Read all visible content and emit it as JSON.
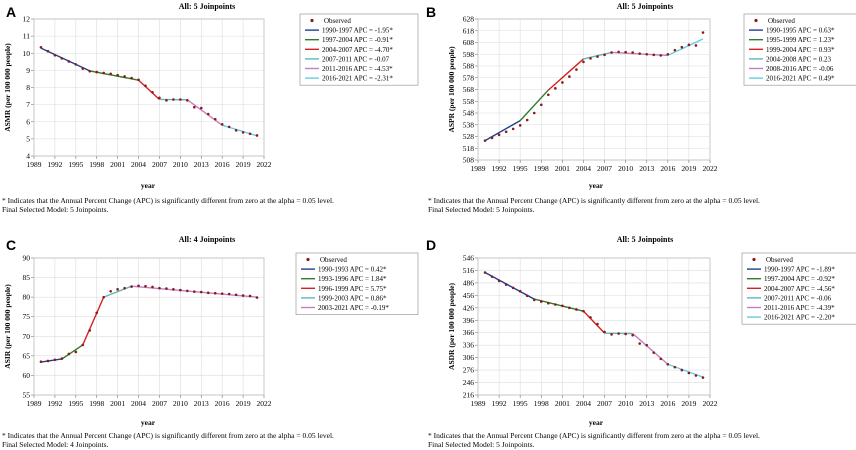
{
  "footnote": "* Indicates that the Annual Percent Change (APC) is significantly different from zero at the alpha = 0.05 level.",
  "observed_label": "Observed",
  "colors": {
    "observed": "#8b1a1a",
    "series": [
      "#1f3f8f",
      "#2e7d2e",
      "#d42020",
      "#5fb7b7",
      "#c27fc2",
      "#66cce6"
    ]
  },
  "panels": [
    {
      "label": "A",
      "title": "All: 5 Joinpoints",
      "final_model": "Final Selected Model: 5 Joinpoints.",
      "chart_data": {
        "type": "line",
        "ylabel": "ASMR (per 100 000 people)",
        "xlabel": "year",
        "xlim": [
          1989,
          2022
        ],
        "ylim": [
          4,
          12
        ],
        "xticks": [
          "1989",
          "1992",
          "1995",
          "1998",
          "2001",
          "2004",
          "2007",
          "2010",
          "2013",
          "2016",
          "2019",
          "2022"
        ],
        "yticks": [
          "4",
          "5",
          "6",
          "7",
          "8",
          "9",
          "10",
          "11",
          "12"
        ],
        "observed": {
          "x": [
            1990,
            1991,
            1992,
            1993,
            1994,
            1995,
            1996,
            1997,
            1998,
            1999,
            2000,
            2001,
            2002,
            2003,
            2004,
            2005,
            2006,
            2007,
            2008,
            2009,
            2010,
            2011,
            2012,
            2013,
            2014,
            2015,
            2016,
            2017,
            2018,
            2019,
            2020,
            2021
          ],
          "y": [
            10.35,
            10.12,
            9.88,
            9.7,
            9.52,
            9.35,
            9.1,
            8.95,
            8.9,
            8.85,
            8.8,
            8.72,
            8.65,
            8.55,
            8.45,
            8.1,
            7.72,
            7.4,
            7.25,
            7.3,
            7.3,
            7.25,
            6.85,
            6.8,
            6.45,
            6.15,
            5.85,
            5.7,
            5.5,
            5.38,
            5.3,
            5.2
          ]
        },
        "segments": [
          {
            "name": "1990-1997 APC = -1.95*",
            "x": [
              1990,
              1997
            ],
            "y": [
              10.3,
              8.97
            ]
          },
          {
            "name": "1997-2004 APC = -0.91*",
            "x": [
              1997,
              2004
            ],
            "y": [
              8.97,
              8.43
            ]
          },
          {
            "name": "2004-2007 APC = -4.70*",
            "x": [
              2004,
              2007
            ],
            "y": [
              8.43,
              7.3
            ]
          },
          {
            "name": "2007-2011 APC = -0.07",
            "x": [
              2007,
              2011
            ],
            "y": [
              7.3,
              7.28
            ]
          },
          {
            "name": "2011-2016 APC = -4.53*",
            "x": [
              2011,
              2016
            ],
            "y": [
              7.28,
              5.8
            ]
          },
          {
            "name": "2016-2021 APC = -2.31*",
            "x": [
              2016,
              2021
            ],
            "y": [
              5.8,
              5.18
            ]
          }
        ]
      }
    },
    {
      "label": "B",
      "title": "All: 5 Joinpoints",
      "final_model": "Final Selected Model: 5 Joinpoints.",
      "chart_data": {
        "type": "line",
        "ylabel": "ASPR (per 100 000 people)",
        "xlabel": "year",
        "xlim": [
          1989,
          2022
        ],
        "ylim": [
          508,
          628
        ],
        "xticks": [
          "1989",
          "1992",
          "1995",
          "1998",
          "2001",
          "2004",
          "2007",
          "2010",
          "2013",
          "2016",
          "2019",
          "2022"
        ],
        "yticks": [
          "508",
          "518",
          "528",
          "538",
          "548",
          "558",
          "568",
          "578",
          "588",
          "598",
          "608",
          "618",
          "628"
        ],
        "observed": {
          "x": [
            1990,
            1991,
            1992,
            1993,
            1994,
            1995,
            1996,
            1997,
            1998,
            1999,
            2000,
            2001,
            2002,
            2003,
            2004,
            2005,
            2006,
            2007,
            2008,
            2009,
            2010,
            2011,
            2012,
            2013,
            2014,
            2015,
            2016,
            2017,
            2018,
            2019,
            2020,
            2021
          ],
          "y": [
            524.5,
            526.8,
            529.5,
            532,
            534.5,
            537.5,
            542,
            548,
            555,
            563.5,
            569,
            574,
            579,
            585,
            591.5,
            594.5,
            596,
            597.5,
            599.5,
            600,
            599.8,
            599.5,
            598.5,
            598,
            597.5,
            597,
            598,
            601.5,
            604,
            606,
            605.5,
            616.5
          ]
        },
        "segments": [
          {
            "name": "1990-1995 APC = 0.63*",
            "x": [
              1990,
              1995
            ],
            "y": [
              524.5,
              541.5
            ]
          },
          {
            "name": "1995-1999 APC = 1.23*",
            "x": [
              1995,
              1999
            ],
            "y": [
              541.5,
              567.5
            ]
          },
          {
            "name": "1999-2004 APC = 0.93*",
            "x": [
              1999,
              2004
            ],
            "y": [
              567.5,
              594
            ]
          },
          {
            "name": "2004-2008 APC = 0.23",
            "x": [
              2004,
              2008
            ],
            "y": [
              594,
              599.5
            ]
          },
          {
            "name": "2008-2016 APC = -0.06",
            "x": [
              2008,
              2016
            ],
            "y": [
              599.5,
              597
            ]
          },
          {
            "name": "2016-2021 APC = 0.49*",
            "x": [
              2016,
              2021
            ],
            "y": [
              597,
              611
            ]
          }
        ]
      }
    },
    {
      "label": "C",
      "title": "All: 4 Joinpoints",
      "final_model": "Final Selected Model: 4 Joinpoints.",
      "chart_data": {
        "type": "line",
        "ylabel": "ASIR (per 100 000 people)",
        "xlabel": "year",
        "xlim": [
          1989,
          2022
        ],
        "ylim": [
          55,
          90
        ],
        "xticks": [
          "1989",
          "1992",
          "1995",
          "1998",
          "2001",
          "2004",
          "2007",
          "2010",
          "2013",
          "2016",
          "2019",
          "2022"
        ],
        "yticks": [
          "55",
          "60",
          "65",
          "70",
          "75",
          "80",
          "85",
          "90"
        ],
        "observed": {
          "x": [
            1990,
            1991,
            1992,
            1993,
            1994,
            1995,
            1996,
            1997,
            1998,
            1999,
            2000,
            2001,
            2002,
            2003,
            2004,
            2005,
            2006,
            2007,
            2008,
            2009,
            2010,
            2011,
            2012,
            2013,
            2014,
            2015,
            2016,
            2017,
            2018,
            2019,
            2020,
            2021
          ],
          "y": [
            63.5,
            63.7,
            64,
            64.3,
            65.5,
            66,
            67.8,
            71.5,
            76,
            80,
            81.5,
            82,
            82.3,
            82.7,
            82.9,
            82.8,
            82.6,
            82.3,
            82.2,
            82,
            81.8,
            81.6,
            81.4,
            81.3,
            81.1,
            81,
            80.9,
            80.8,
            80.6,
            80.4,
            80.3,
            79.9
          ]
        },
        "segments": [
          {
            "name": "1990-1993 APC = 0.42*",
            "x": [
              1990,
              1993
            ],
            "y": [
              63.4,
              64.2
            ]
          },
          {
            "name": "1993-1996 APC = 1.84*",
            "x": [
              1993,
              1996
            ],
            "y": [
              64.2,
              67.8
            ]
          },
          {
            "name": "1996-1999 APC = 5.75*",
            "x": [
              1996,
              1999
            ],
            "y": [
              67.8,
              80
            ]
          },
          {
            "name": "1999-2003 APC = 0.86*",
            "x": [
              1999,
              2003
            ],
            "y": [
              80,
              82.8
            ]
          },
          {
            "name": "2003-2021 APC = -0.19*",
            "x": [
              2003,
              2021
            ],
            "y": [
              82.8,
              80
            ]
          }
        ]
      }
    },
    {
      "label": "D",
      "title": "All: 5 Joinpoints",
      "final_model": "Final Selected Model: 5 Joinpoints.",
      "chart_data": {
        "type": "line",
        "ylabel": "ASDR (per 100 000 people)",
        "xlabel": "year",
        "xlim": [
          1989,
          2022
        ],
        "ylim": [
          216,
          546
        ],
        "xticks": [
          "1989",
          "1992",
          "1995",
          "1998",
          "2001",
          "2004",
          "2007",
          "2010",
          "2013",
          "2016",
          "2019",
          "2022"
        ],
        "yticks": [
          "216",
          "246",
          "276",
          "306",
          "336",
          "366",
          "396",
          "426",
          "456",
          "486",
          "516",
          "546"
        ],
        "observed": {
          "x": [
            1990,
            1991,
            1992,
            1993,
            1994,
            1995,
            1996,
            1997,
            1998,
            1999,
            2000,
            2001,
            2002,
            2003,
            2004,
            2005,
            2006,
            2007,
            2008,
            2009,
            2010,
            2011,
            2012,
            2013,
            2014,
            2015,
            2016,
            2017,
            2018,
            2019,
            2020,
            2021
          ],
          "y": [
            511,
            501,
            491,
            482,
            474,
            466,
            455,
            445,
            441,
            437,
            434,
            431,
            426,
            422,
            418,
            403,
            387,
            368,
            362,
            364,
            363,
            360,
            340,
            336,
            318,
            303,
            290,
            283,
            276,
            269,
            263,
            258
          ]
        },
        "segments": [
          {
            "name": "1990-1997 APC = -1.89*",
            "x": [
              1990,
              1997
            ],
            "y": [
              511,
              447
            ]
          },
          {
            "name": "1997-2004 APC = -0.92*",
            "x": [
              1997,
              2004
            ],
            "y": [
              447,
              418
            ]
          },
          {
            "name": "2004-2007 APC = -4.56*",
            "x": [
              2004,
              2007
            ],
            "y": [
              418,
              365
            ]
          },
          {
            "name": "2007-2011 APC = -0.06",
            "x": [
              2007,
              2011
            ],
            "y": [
              365,
              364
            ]
          },
          {
            "name": "2011-2016 APC = -4.39*",
            "x": [
              2011,
              2016
            ],
            "y": [
              364,
              290
            ]
          },
          {
            "name": "2016-2021 APC = -2.20*",
            "x": [
              2016,
              2021
            ],
            "y": [
              290,
              259
            ]
          }
        ]
      }
    }
  ]
}
